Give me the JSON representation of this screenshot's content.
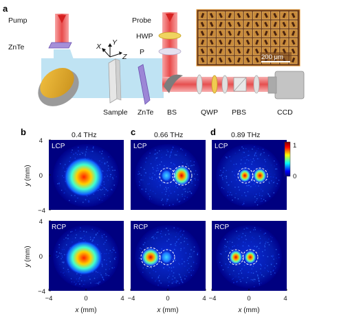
{
  "panels": {
    "a": {
      "letter": "a",
      "labels": {
        "pump": "Pump",
        "znte_top": "ZnTe",
        "probe": "Probe",
        "hwp": "HWP",
        "p": "P",
        "scale_bar": "200 μm",
        "axis_x": "X",
        "axis_y": "Y",
        "axis_z": "Z",
        "sample": "Sample",
        "znte_bottom": "ZnTe",
        "bs": "BS",
        "qwp": "QWP",
        "pbs": "PBS",
        "ccd": "CCD"
      }
    },
    "b": {
      "letter": "b",
      "title": "0.4 THz"
    },
    "c": {
      "letter": "c",
      "title": "0.66 THz"
    },
    "d": {
      "letter": "d",
      "title": "0.89 THz"
    },
    "row_labels": {
      "top": "LCP",
      "bottom": "RCP"
    },
    "colorbar": {
      "max_label": "1",
      "min_label": "0",
      "colors": [
        "#00007f",
        "#0000ff",
        "#00ffff",
        "#ffff00",
        "#ff0000",
        "#7f0000"
      ]
    },
    "axes": {
      "x_title_var": "x",
      "x_title_unit": " (mm)",
      "y_title_var": "y",
      "y_title_unit": " (mm)",
      "x_ticks": [
        "−4",
        "0",
        "4"
      ],
      "y_ticks": [
        "4",
        "0",
        "−4"
      ]
    }
  }
}
